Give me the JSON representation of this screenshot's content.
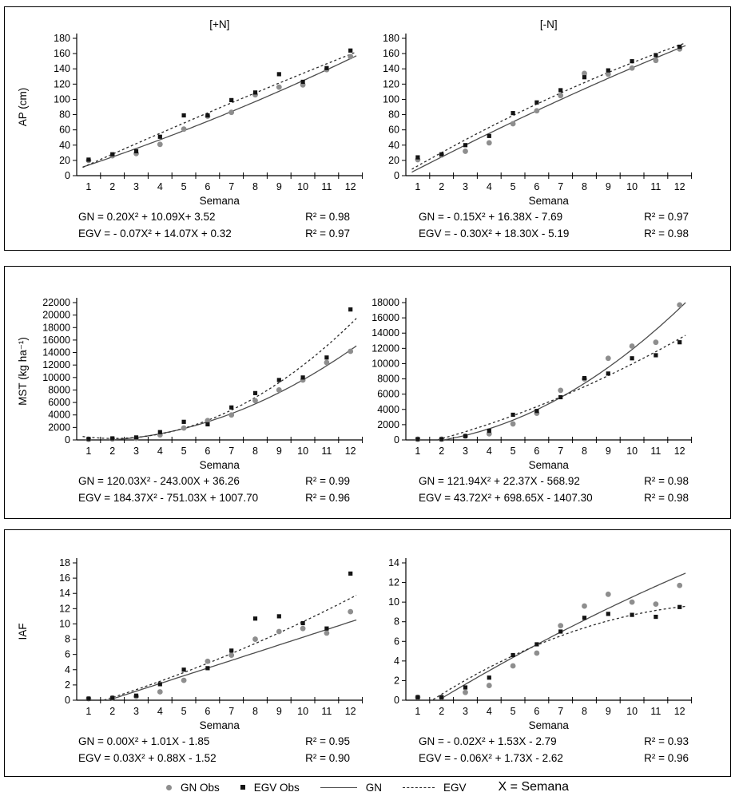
{
  "legend": {
    "items": [
      {
        "label": "GN Obs",
        "marker": "circle",
        "color": "#8e8e8e"
      },
      {
        "label": "EGV Obs",
        "marker": "square",
        "color": "#141414"
      },
      {
        "label": "GN",
        "marker": "line-solid",
        "color": "#4d4d4d"
      },
      {
        "label": "EGV",
        "marker": "line-dashed",
        "color": "#2b2b2b"
      }
    ],
    "note": "X = Semana"
  },
  "chart_data": [
    {
      "id": "ap-plus-n",
      "type": "scatter",
      "panel": 1,
      "side": "left",
      "title": "[+N]",
      "xlabel": "Semana",
      "ylabel": "AP (cm)",
      "x": [
        1,
        2,
        3,
        4,
        5,
        6,
        7,
        8,
        9,
        10,
        11,
        12
      ],
      "ylim": [
        0,
        180
      ],
      "ytick_step": 20,
      "series": [
        {
          "name": "GN Obs",
          "marker": "circle",
          "color": "#8e8e8e",
          "values": [
            20,
            26,
            29,
            41,
            61,
            78,
            83,
            106,
            116,
            119,
            139,
            156
          ]
        },
        {
          "name": "EGV Obs",
          "marker": "square",
          "color": "#141414",
          "values": [
            21,
            28,
            32,
            51,
            79,
            79,
            99,
            109,
            133,
            123,
            141,
            164
          ]
        }
      ],
      "fits": [
        {
          "name": "GN",
          "style": "solid",
          "color": "#4d4d4d",
          "coefficients": [
            0.2,
            10.09,
            3.52
          ]
        },
        {
          "name": "EGV",
          "style": "dashed",
          "color": "#2b2b2b",
          "coefficients": [
            -0.07,
            14.07,
            0.32
          ]
        }
      ],
      "equations": [
        {
          "text": "GN = 0.20X² + 10.09X+ 3.52",
          "r2": "R² = 0.98"
        },
        {
          "text": "EGV = - 0.07X² + 14.07X + 0.32",
          "r2": "R² = 0.97"
        }
      ]
    },
    {
      "id": "ap-minus-n",
      "type": "scatter",
      "panel": 1,
      "side": "right",
      "title": "[-N]",
      "xlabel": "Semana",
      "ylabel": "",
      "x": [
        1,
        2,
        3,
        4,
        5,
        6,
        7,
        8,
        9,
        10,
        11,
        12
      ],
      "ylim": [
        0,
        180
      ],
      "ytick_step": 20,
      "series": [
        {
          "name": "GN Obs",
          "marker": "circle",
          "color": "#8e8e8e",
          "values": [
            21,
            27,
            32,
            43,
            68,
            85,
            105,
            134,
            133,
            141,
            151,
            166
          ]
        },
        {
          "name": "EGV Obs",
          "marker": "square",
          "color": "#141414",
          "values": [
            24,
            28,
            40,
            52,
            82,
            96,
            112,
            129,
            138,
            150,
            158,
            169
          ]
        }
      ],
      "fits": [
        {
          "name": "GN",
          "style": "solid",
          "color": "#4d4d4d",
          "coefficients": [
            -0.15,
            16.38,
            -7.69
          ]
        },
        {
          "name": "EGV",
          "style": "dashed",
          "color": "#2b2b2b",
          "coefficients": [
            -0.3,
            18.3,
            -5.19
          ]
        }
      ],
      "equations": [
        {
          "text": "GN = - 0.15X² + 16.38X - 7.69",
          "r2": "R² = 0.97"
        },
        {
          "text": "EGV = - 0.30X² + 18.30X - 5.19",
          "r2": "R² = 0.98"
        }
      ]
    },
    {
      "id": "mst-plus-n",
      "type": "scatter",
      "panel": 2,
      "side": "left",
      "title": "",
      "xlabel": "Semana",
      "ylabel": "MST (kg ha⁻¹)",
      "x": [
        1,
        2,
        3,
        4,
        5,
        6,
        7,
        8,
        9,
        10,
        11,
        12
      ],
      "ylim": [
        0,
        22000
      ],
      "ytick_step": 2000,
      "series": [
        {
          "name": "GN Obs",
          "marker": "circle",
          "color": "#8e8e8e",
          "values": [
            100,
            150,
            250,
            800,
            1900,
            3100,
            4000,
            6300,
            8000,
            9600,
            12400,
            14200
          ]
        },
        {
          "name": "EGV Obs",
          "marker": "square",
          "color": "#141414",
          "values": [
            150,
            250,
            400,
            1250,
            2900,
            2500,
            5200,
            7500,
            9600,
            10000,
            13200,
            20900
          ]
        }
      ],
      "fits": [
        {
          "name": "GN",
          "style": "solid",
          "color": "#4d4d4d",
          "coefficients": [
            120.03,
            -243.0,
            36.26
          ]
        },
        {
          "name": "EGV",
          "style": "dashed",
          "color": "#2b2b2b",
          "coefficients": [
            184.37,
            -751.03,
            1007.7
          ]
        }
      ],
      "equations": [
        {
          "text": "GN = 120.03X² - 243.00X + 36.26",
          "r2": "R² = 0.99"
        },
        {
          "text": "EGV = 184.37X² - 751.03X + 1007.70",
          "r2": "R² = 0.96"
        }
      ]
    },
    {
      "id": "mst-minus-n",
      "type": "scatter",
      "panel": 2,
      "side": "right",
      "title": "",
      "xlabel": "Semana",
      "ylabel": "",
      "x": [
        1,
        2,
        3,
        4,
        5,
        6,
        7,
        8,
        9,
        10,
        11,
        12
      ],
      "ylim": [
        0,
        18000
      ],
      "ytick_step": 2000,
      "series": [
        {
          "name": "GN Obs",
          "marker": "circle",
          "color": "#8e8e8e",
          "values": [
            100,
            100,
            500,
            800,
            2100,
            3500,
            6500,
            8000,
            10700,
            12300,
            12800,
            17700
          ]
        },
        {
          "name": "EGV Obs",
          "marker": "square",
          "color": "#141414",
          "values": [
            100,
            100,
            500,
            1200,
            3300,
            3800,
            5600,
            8100,
            8700,
            10700,
            11100,
            12800
          ]
        }
      ],
      "fits": [
        {
          "name": "GN",
          "style": "solid",
          "color": "#4d4d4d",
          "coefficients": [
            121.94,
            22.37,
            -568.92
          ]
        },
        {
          "name": "EGV",
          "style": "dashed",
          "color": "#2b2b2b",
          "coefficients": [
            43.72,
            698.65,
            -1407.3
          ]
        }
      ],
      "equations": [
        {
          "text": "GN = 121.94X² + 22.37X - 568.92",
          "r2": "R² = 0.98"
        },
        {
          "text": "EGV = 43.72X² + 698.65X - 1407.30",
          "r2": "R² = 0.98"
        }
      ]
    },
    {
      "id": "iaf-plus-n",
      "type": "scatter",
      "panel": 3,
      "side": "left",
      "title": "",
      "xlabel": "Semana",
      "ylabel": "IAF",
      "x": [
        1,
        2,
        3,
        4,
        5,
        6,
        7,
        8,
        9,
        10,
        11,
        12
      ],
      "ylim": [
        0,
        18
      ],
      "ytick_step": 2,
      "series": [
        {
          "name": "GN Obs",
          "marker": "circle",
          "color": "#8e8e8e",
          "values": [
            0.2,
            0.3,
            0.5,
            1.1,
            2.6,
            5.1,
            5.9,
            8.0,
            9.0,
            9.4,
            8.8,
            11.6
          ]
        },
        {
          "name": "EGV Obs",
          "marker": "square",
          "color": "#141414",
          "values": [
            0.2,
            0.3,
            0.6,
            2.1,
            4.0,
            4.2,
            6.5,
            10.7,
            11.0,
            10.1,
            9.4,
            16.6
          ]
        }
      ],
      "fits": [
        {
          "name": "GN",
          "style": "solid",
          "color": "#4d4d4d",
          "coefficients": [
            0.0,
            1.01,
            -1.85
          ]
        },
        {
          "name": "EGV",
          "style": "dashed",
          "color": "#2b2b2b",
          "coefficients": [
            0.03,
            0.88,
            -1.52
          ]
        }
      ],
      "equations": [
        {
          "text": "GN = 0.00X² + 1.01X - 1.85",
          "r2": "R² = 0.95"
        },
        {
          "text": "EGV = 0.03X² + 0.88X - 1.52",
          "r2": "R² = 0.90"
        }
      ]
    },
    {
      "id": "iaf-minus-n",
      "type": "scatter",
      "panel": 3,
      "side": "right",
      "title": "",
      "xlabel": "Semana",
      "ylabel": "",
      "x": [
        1,
        2,
        3,
        4,
        5,
        6,
        7,
        8,
        9,
        10,
        11,
        12
      ],
      "ylim": [
        0,
        14
      ],
      "ytick_step": 2,
      "series": [
        {
          "name": "GN Obs",
          "marker": "circle",
          "color": "#8e8e8e",
          "values": [
            0.3,
            0.3,
            0.8,
            1.5,
            3.5,
            4.8,
            7.6,
            9.6,
            10.8,
            10.0,
            9.8,
            11.7
          ]
        },
        {
          "name": "EGV Obs",
          "marker": "square",
          "color": "#141414",
          "values": [
            0.3,
            0.3,
            1.3,
            2.3,
            4.6,
            5.7,
            7.0,
            8.4,
            8.8,
            8.7,
            8.5,
            9.5
          ]
        }
      ],
      "fits": [
        {
          "name": "GN",
          "style": "solid",
          "color": "#4d4d4d",
          "coefficients": [
            -0.02,
            1.53,
            -2.79
          ]
        },
        {
          "name": "EGV",
          "style": "dashed",
          "color": "#2b2b2b",
          "coefficients": [
            -0.06,
            1.73,
            -2.62
          ]
        }
      ],
      "equations": [
        {
          "text": "GN = - 0.02X² + 1.53X - 2.79",
          "r2": "R² = 0.93"
        },
        {
          "text": "EGV = - 0.06X² + 1.73X - 2.62",
          "r2": "R² = 0.96"
        }
      ]
    }
  ]
}
